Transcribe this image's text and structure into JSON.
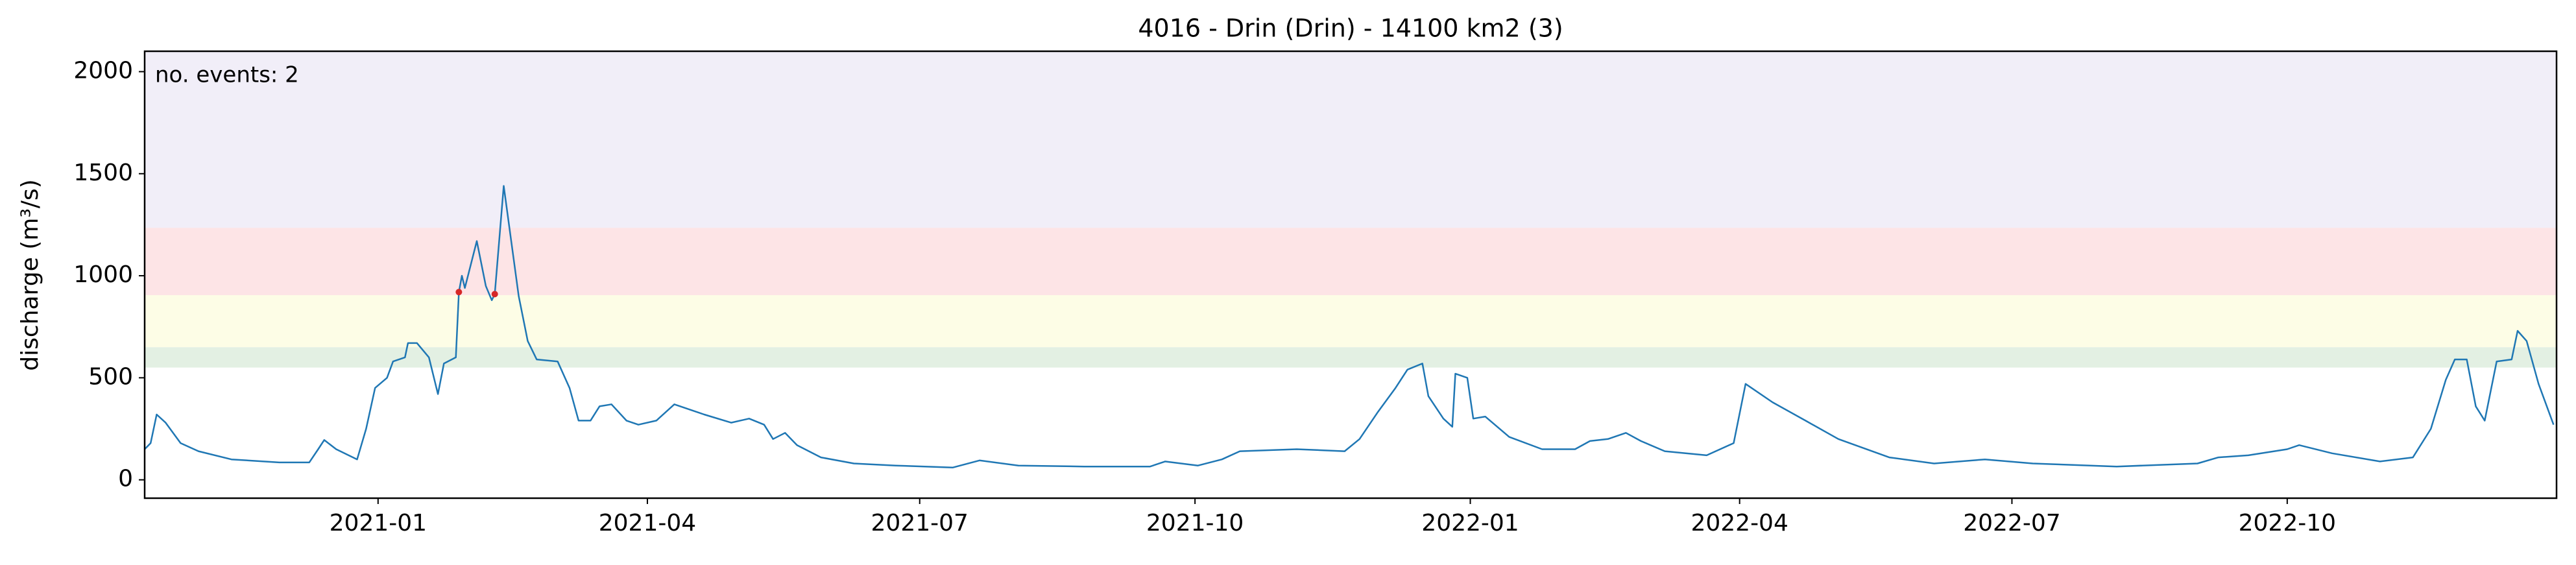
{
  "chart_data": {
    "type": "line",
    "title": "4016 - Drin (Drin) - 14100 km2 (3)",
    "y_label": "discharge (m³/s)",
    "annotation": "no. events: 2",
    "color": "#1f77b4",
    "x": [
      "2020-10-15",
      "2020-10-17",
      "2020-10-19",
      "2020-10-22",
      "2020-10-27",
      "2020-11-02",
      "2020-11-13",
      "2020-11-29",
      "2020-12-09",
      "2020-12-12",
      "2020-12-14",
      "2020-12-18",
      "2020-12-25",
      "2020-12-28",
      "2020-12-31",
      "2021-01-04",
      "2021-01-06",
      "2021-01-10",
      "2021-01-11",
      "2021-01-14",
      "2021-01-18",
      "2021-01-21",
      "2021-01-23",
      "2021-01-27",
      "2021-01-28",
      "2021-01-29",
      "2021-01-30",
      "2021-02-03",
      "2021-02-06",
      "2021-02-08",
      "2021-02-09",
      "2021-02-12",
      "2021-02-17",
      "2021-02-20",
      "2021-02-23",
      "2021-03-02",
      "2021-03-06",
      "2021-03-09",
      "2021-03-13",
      "2021-03-16",
      "2021-03-20",
      "2021-03-25",
      "2021-03-29",
      "2021-04-04",
      "2021-04-10",
      "2021-04-20",
      "2021-04-29",
      "2021-05-05",
      "2021-05-10",
      "2021-05-13",
      "2021-05-17",
      "2021-05-21",
      "2021-05-29",
      "2021-06-09",
      "2021-06-23",
      "2021-07-12",
      "2021-07-21",
      "2021-08-03",
      "2021-08-25",
      "2021-09-16",
      "2021-09-21",
      "2021-10-02",
      "2021-10-10",
      "2021-10-16",
      "2021-11-04",
      "2021-11-20",
      "2021-11-25",
      "2021-12-01",
      "2021-12-07",
      "2021-12-11",
      "2021-12-16",
      "2021-12-18",
      "2021-12-23",
      "2021-12-26",
      "2021-12-27",
      "2021-12-31",
      "2022-01-02",
      "2022-01-06",
      "2022-01-14",
      "2022-01-25",
      "2022-02-05",
      "2022-02-10",
      "2022-02-16",
      "2022-02-22",
      "2022-02-27",
      "2022-03-07",
      "2022-03-21",
      "2022-03-30",
      "2022-04-03",
      "2022-04-12",
      "2022-04-23",
      "2022-05-04",
      "2022-05-21",
      "2022-06-05",
      "2022-06-22",
      "2022-07-08",
      "2022-08-05",
      "2022-09-01",
      "2022-09-08",
      "2022-09-18",
      "2022-10-01",
      "2022-10-05",
      "2022-10-16",
      "2022-11-01",
      "2022-11-12",
      "2022-11-18",
      "2022-11-23",
      "2022-11-26",
      "2022-11-30",
      "2022-12-03",
      "2022-12-06",
      "2022-12-10",
      "2022-12-15",
      "2022-12-17",
      "2022-12-20",
      "2022-12-24",
      "2022-12-29"
    ],
    "values": [
      150,
      180,
      320,
      280,
      180,
      140,
      100,
      85,
      85,
      150,
      195,
      150,
      100,
      250,
      450,
      500,
      580,
      600,
      670,
      670,
      600,
      420,
      570,
      600,
      920,
      1000,
      940,
      1170,
      950,
      880,
      910,
      1440,
      900,
      680,
      590,
      580,
      450,
      290,
      290,
      360,
      370,
      290,
      270,
      290,
      370,
      320,
      280,
      300,
      270,
      200,
      230,
      170,
      110,
      80,
      70,
      60,
      95,
      70,
      65,
      65,
      90,
      70,
      100,
      140,
      150,
      140,
      200,
      330,
      450,
      540,
      570,
      410,
      300,
      260,
      520,
      500,
      300,
      310,
      210,
      150,
      150,
      190,
      200,
      230,
      190,
      140,
      120,
      180,
      470,
      380,
      290,
      200,
      110,
      80,
      100,
      80,
      65,
      80,
      110,
      120,
      150,
      170,
      130,
      90,
      110,
      250,
      490,
      590,
      590,
      360,
      290,
      580,
      590,
      730,
      680,
      470,
      270
    ],
    "events": {
      "x": [
        "2021-01-28",
        "2021-02-09"
      ],
      "values": [
        920,
        910
      ],
      "color": "#d62728"
    },
    "thresholds": [
      {
        "from": 550,
        "to": 650,
        "color": "#e3f0e3"
      },
      {
        "from": 650,
        "to": 905,
        "color": "#fdfde6"
      },
      {
        "from": 905,
        "to": 1235,
        "color": "#fde4e6"
      },
      {
        "from": 1235,
        "to": 2100,
        "color": "#f1eef8"
      }
    ],
    "xlim": [
      "2020-10-15",
      "2022-12-30"
    ],
    "ylim": [
      -90,
      2100
    ],
    "xticks": [
      {
        "value": "2021-01-01",
        "label": "2021-01"
      },
      {
        "value": "2021-04-01",
        "label": "2021-04"
      },
      {
        "value": "2021-07-01",
        "label": "2021-07"
      },
      {
        "value": "2021-10-01",
        "label": "2021-10"
      },
      {
        "value": "2022-01-01",
        "label": "2022-01"
      },
      {
        "value": "2022-04-01",
        "label": "2022-04"
      },
      {
        "value": "2022-07-01",
        "label": "2022-07"
      },
      {
        "value": "2022-10-01",
        "label": "2022-10"
      }
    ],
    "yticks": [
      0,
      500,
      1000,
      1500,
      2000
    ],
    "grid": false
  }
}
